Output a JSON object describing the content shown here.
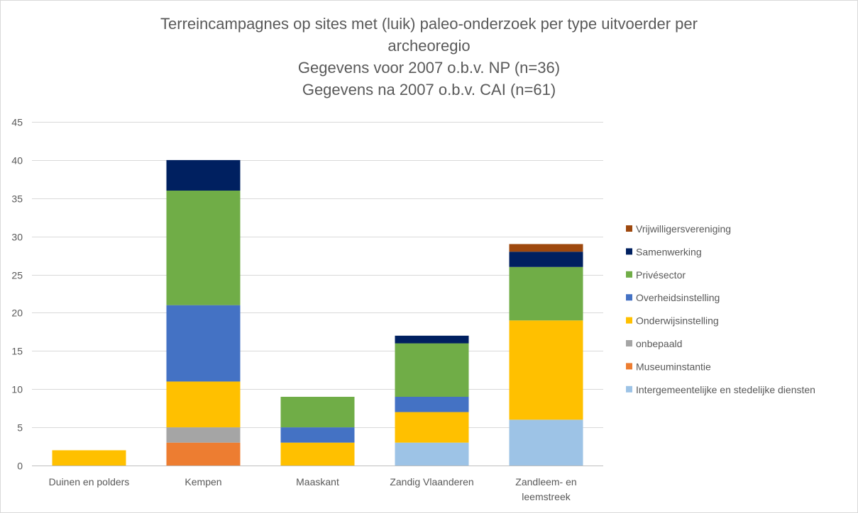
{
  "chart_data": {
    "type": "bar",
    "stacked": true,
    "title_lines": [
      "Terreincampagnes op sites met (luik) paleo-onderzoek  per type uitvoerder per",
      "archeoregio",
      "Gegevens voor 2007 o.b.v. NP (n=36)",
      "Gegevens na 2007 o.b.v. CAI (n=61)"
    ],
    "categories": [
      [
        "Duinen en polders"
      ],
      [
        "Kempen"
      ],
      [
        "Maaskant"
      ],
      [
        "Zandig Vlaanderen"
      ],
      [
        "Zandleem- en",
        "leemstreek"
      ]
    ],
    "ylim": [
      0,
      45
    ],
    "yticks": [
      0,
      5,
      10,
      15,
      20,
      25,
      30,
      35,
      40,
      45
    ],
    "grid": true,
    "legend_position": "right",
    "series": [
      {
        "name": "Intergemeentelijke en stedelijke diensten",
        "color": "#9DC3E6",
        "values": [
          0,
          0,
          0,
          3,
          6
        ]
      },
      {
        "name": "Museuminstantie",
        "color": "#ED7D31",
        "values": [
          0,
          3,
          0,
          0,
          0
        ]
      },
      {
        "name": "onbepaald",
        "color": "#A5A5A5",
        "values": [
          0,
          2,
          0,
          0,
          0
        ]
      },
      {
        "name": "Onderwijsinstelling",
        "color": "#FFC000",
        "values": [
          2,
          6,
          3,
          4,
          13
        ]
      },
      {
        "name": "Overheidsinstelling",
        "color": "#4472C4",
        "values": [
          0,
          10,
          2,
          2,
          0
        ]
      },
      {
        "name": "Privésector",
        "color": "#70AD47",
        "values": [
          0,
          15,
          4,
          7,
          7
        ]
      },
      {
        "name": "Samenwerking",
        "color": "#002060",
        "values": [
          0,
          4,
          0,
          1,
          2
        ]
      },
      {
        "name": "Vrijwilligersvereniging",
        "color": "#9E480E",
        "values": [
          0,
          0,
          0,
          0,
          1
        ]
      }
    ]
  }
}
